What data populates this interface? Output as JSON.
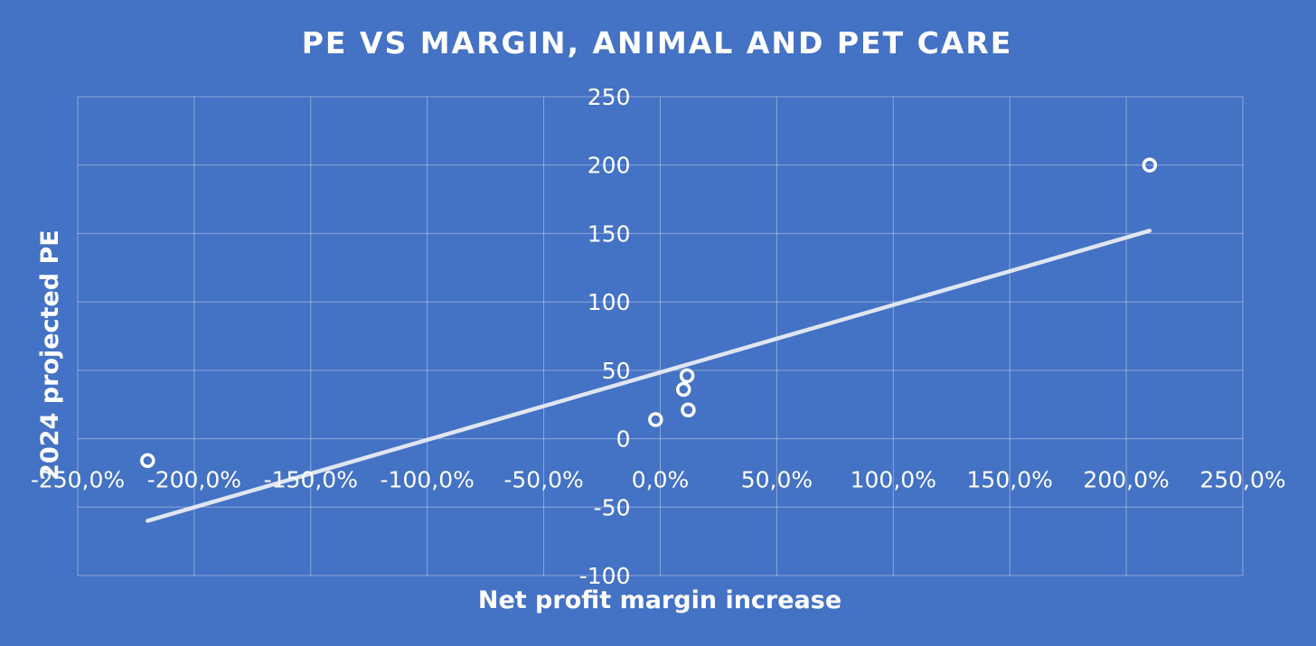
{
  "chart_data": {
    "type": "scatter",
    "title": "PE VS MARGIN, ANIMAL AND PET CARE",
    "xlabel": "Net profit margin increase",
    "ylabel": "2024 projected PE",
    "xlim": [
      -2.5,
      2.5
    ],
    "ylim": [
      -100,
      250
    ],
    "x_ticks": [
      -2.5,
      -2.0,
      -1.5,
      -1.0,
      -0.5,
      0.0,
      0.5,
      1.0,
      1.5,
      2.0,
      2.5
    ],
    "x_tick_labels": [
      "-250,0%",
      "-200,0%",
      "-150,0%",
      "-100,0%",
      "-50,0%",
      "0,0%",
      "50,0%",
      "100,0%",
      "150,0%",
      "200,0%",
      "250,0%"
    ],
    "y_ticks": [
      -100,
      -50,
      0,
      50,
      100,
      150,
      200,
      250
    ],
    "y_tick_labels": [
      "-100",
      "-50",
      "0",
      "50",
      "100",
      "150",
      "200",
      "250"
    ],
    "grid": true,
    "legend": "none",
    "points": [
      {
        "x": -2.2,
        "y": -16
      },
      {
        "x": -0.02,
        "y": 14
      },
      {
        "x": 0.1,
        "y": 36
      },
      {
        "x": 0.115,
        "y": 46
      },
      {
        "x": 0.12,
        "y": 21
      },
      {
        "x": 2.1,
        "y": 200
      }
    ],
    "trendline": {
      "type": "linear",
      "x": [
        -2.2,
        2.1
      ],
      "y": [
        -60,
        152
      ]
    },
    "colors": {
      "background": "#4472c4",
      "marker": "#ffffff",
      "trendline": "#dfe6f2"
    }
  }
}
